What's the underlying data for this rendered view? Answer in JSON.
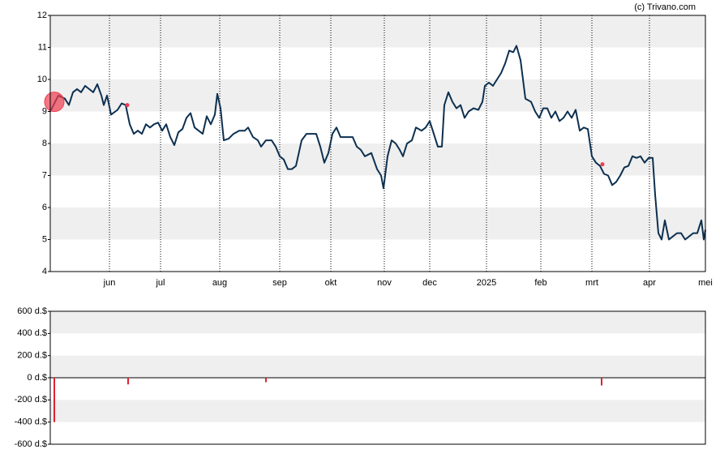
{
  "credit": "(c) Trivano.com",
  "chart_data": [
    {
      "type": "line",
      "xlim": [
        0,
        808
      ],
      "ylim": [
        4,
        12
      ],
      "yticks": [
        4,
        5,
        6,
        7,
        8,
        9,
        10,
        11,
        12
      ],
      "xticks": [
        {
          "value": 73,
          "label": "jun"
        },
        {
          "value": 136,
          "label": "jul"
        },
        {
          "value": 209,
          "label": "aug"
        },
        {
          "value": 283,
          "label": "sep"
        },
        {
          "value": 346,
          "label": "okt"
        },
        {
          "value": 412,
          "label": "nov"
        },
        {
          "value": 468,
          "label": "dec"
        },
        {
          "value": 538,
          "label": "2025"
        },
        {
          "value": 605,
          "label": "feb"
        },
        {
          "value": 668,
          "label": "mrt"
        },
        {
          "value": 739,
          "label": "apr"
        },
        {
          "value": 808,
          "label": "mei"
        }
      ],
      "grid": true,
      "series": [
        {
          "color": "#0d3050",
          "x": [
            0,
            6,
            10,
            18,
            23,
            28,
            33,
            38,
            43,
            48,
            53,
            58,
            63,
            66,
            70,
            75,
            83,
            88,
            93,
            98,
            103,
            108,
            113,
            118,
            123,
            128,
            133,
            138,
            143,
            148,
            153,
            158,
            163,
            168,
            173,
            178,
            183,
            188,
            193,
            198,
            203,
            206,
            210,
            214,
            220,
            226,
            233,
            240,
            244,
            250,
            256,
            260,
            266,
            273,
            278,
            283,
            288,
            293,
            298,
            303,
            310,
            316,
            323,
            328,
            333,
            338,
            343,
            348,
            353,
            358,
            366,
            373,
            378,
            383,
            388,
            396,
            403,
            408,
            411,
            416,
            421,
            426,
            431,
            435,
            440,
            446,
            451,
            458,
            463,
            468,
            473,
            478,
            483,
            486,
            491,
            496,
            501,
            506,
            511,
            516,
            522,
            528,
            533,
            536,
            541,
            546,
            551,
            556,
            561,
            566,
            571,
            575,
            580,
            586,
            593,
            598,
            603,
            608,
            613,
            618,
            623,
            628,
            633,
            638,
            643,
            648,
            653,
            658,
            663,
            668,
            673,
            678,
            683,
            688,
            693,
            698,
            703,
            708,
            713,
            718,
            723,
            728,
            733,
            738,
            743,
            746,
            750,
            754,
            758,
            763,
            768,
            773,
            778,
            783,
            788,
            793,
            798,
            803,
            806,
            808
          ],
          "values": [
            9.0,
            9.3,
            9.5,
            9.4,
            9.2,
            9.6,
            9.7,
            9.6,
            9.8,
            9.7,
            9.6,
            9.85,
            9.5,
            9.2,
            9.5,
            8.9,
            9.05,
            9.25,
            9.2,
            8.6,
            8.3,
            8.4,
            8.3,
            8.6,
            8.5,
            8.6,
            8.65,
            8.4,
            8.6,
            8.2,
            7.95,
            8.35,
            8.45,
            8.8,
            8.95,
            8.5,
            8.4,
            8.3,
            8.85,
            8.6,
            8.9,
            9.55,
            9.1,
            8.1,
            8.15,
            8.3,
            8.4,
            8.4,
            8.5,
            8.2,
            8.1,
            7.9,
            8.1,
            8.1,
            7.9,
            7.6,
            7.5,
            7.2,
            7.2,
            7.3,
            8.1,
            8.3,
            8.3,
            8.3,
            7.9,
            7.4,
            7.7,
            8.3,
            8.5,
            8.2,
            8.2,
            8.2,
            7.9,
            7.8,
            7.6,
            7.7,
            7.2,
            7.0,
            6.6,
            7.6,
            8.1,
            8.0,
            7.8,
            7.6,
            8.0,
            8.1,
            8.5,
            8.4,
            8.5,
            8.7,
            8.3,
            7.9,
            7.9,
            9.2,
            9.6,
            9.3,
            9.1,
            9.2,
            8.8,
            9.0,
            9.1,
            9.05,
            9.3,
            9.8,
            9.9,
            9.8,
            10.0,
            10.2,
            10.5,
            10.9,
            10.85,
            11.05,
            10.6,
            9.4,
            9.3,
            9.0,
            8.8,
            9.1,
            9.1,
            8.8,
            9.0,
            8.7,
            8.8,
            9.0,
            8.8,
            9.05,
            8.4,
            8.5,
            8.45,
            7.6,
            7.4,
            7.3,
            7.05,
            7.0,
            6.7,
            6.8,
            7.0,
            7.25,
            7.3,
            7.6,
            7.55,
            7.6,
            7.4,
            7.55,
            7.55,
            6.4,
            5.2,
            5.0,
            5.6,
            5.0,
            5.1,
            5.2,
            5.2,
            5.0,
            5.1,
            5.2,
            5.2,
            5.6,
            5.0,
            5.3
          ]
        }
      ],
      "markers": {
        "color": "#f03c50",
        "x": [
          5,
          95,
          681
        ],
        "values": [
          9.3,
          9.2,
          7.35
        ],
        "sizes": [
          12,
          2.5,
          2.5
        ]
      }
    },
    {
      "type": "bar",
      "xlim": [
        0,
        808
      ],
      "ylim": [
        -600,
        600
      ],
      "yticks": [
        {
          "value": -600,
          "label": "-600 d.$"
        },
        {
          "value": -400,
          "label": "-400 d.$"
        },
        {
          "value": -200,
          "label": "-200 d.$"
        },
        {
          "value": 0,
          "label": "0 d.$"
        },
        {
          "value": 200,
          "label": "200 d.$"
        },
        {
          "value": 400,
          "label": "400 d.$"
        },
        {
          "value": 600,
          "label": "600 d.$"
        }
      ],
      "grid": true,
      "color": "#e02030",
      "x": [
        5,
        96,
        266,
        680
      ],
      "values": [
        -400,
        -60,
        -40,
        -70
      ]
    }
  ]
}
